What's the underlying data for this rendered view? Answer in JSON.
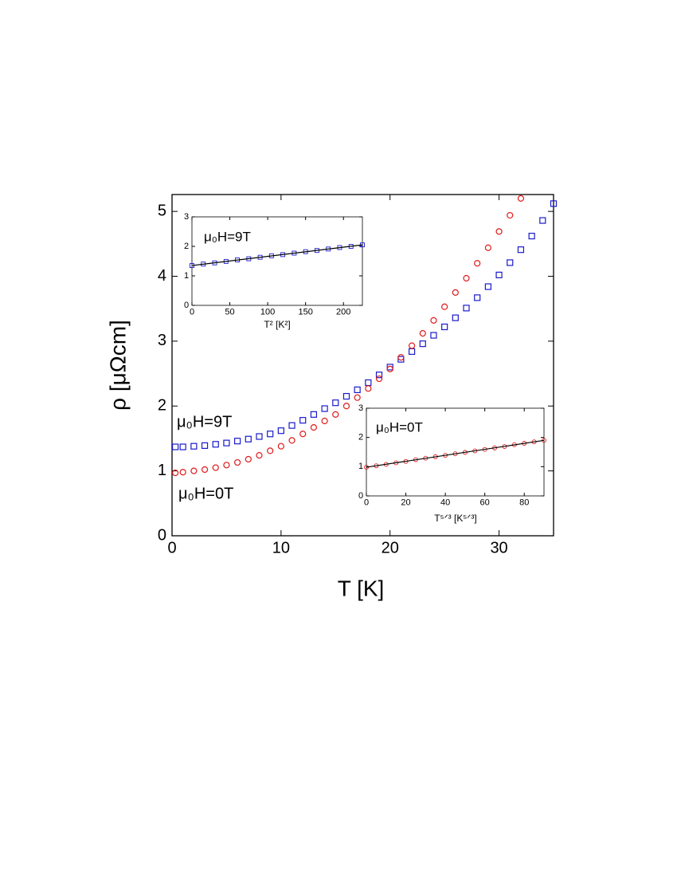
{
  "chart_data": [
    {
      "type": "scatter",
      "xlabel": "T [K]",
      "ylabel": "ρ [μΩcm]",
      "xlim": [
        0,
        35
      ],
      "ylim": [
        0,
        5.26
      ],
      "xticks": [
        0,
        10,
        20,
        30
      ],
      "yticks": [
        0,
        1,
        2,
        3,
        4,
        5
      ],
      "annotations": [
        "μ₀H=9T",
        "μ₀H=0T"
      ],
      "series": [
        {
          "name": "μ₀H=9T",
          "color": "#1a1acc",
          "marker": "square",
          "x": [
            0.3,
            1,
            2,
            3,
            4,
            5,
            6,
            7,
            8,
            9,
            10,
            11,
            12,
            13,
            14,
            15,
            16,
            17,
            18,
            19,
            20,
            21,
            22,
            23,
            24,
            25,
            26,
            27,
            28,
            29,
            30,
            31,
            32,
            33,
            34,
            35
          ],
          "values": [
            1.37,
            1.37,
            1.38,
            1.39,
            1.41,
            1.43,
            1.46,
            1.49,
            1.53,
            1.57,
            1.62,
            1.7,
            1.78,
            1.87,
            1.96,
            2.05,
            2.15,
            2.25,
            2.36,
            2.48,
            2.6,
            2.72,
            2.84,
            2.96,
            3.09,
            3.22,
            3.36,
            3.51,
            3.67,
            3.84,
            4.02,
            4.21,
            4.41,
            4.62,
            4.86,
            5.12
          ]
        },
        {
          "name": "μ₀H=0T",
          "color": "#e01a1a",
          "marker": "circle",
          "x": [
            0.3,
            1,
            2,
            3,
            4,
            5,
            6,
            7,
            8,
            9,
            10,
            11,
            12,
            13,
            14,
            15,
            16,
            17,
            18,
            19,
            20,
            21,
            22,
            23,
            24,
            25,
            26,
            27,
            28,
            29,
            30,
            31,
            32
          ],
          "values": [
            0.97,
            0.98,
            1.0,
            1.02,
            1.05,
            1.09,
            1.13,
            1.18,
            1.24,
            1.31,
            1.38,
            1.47,
            1.57,
            1.67,
            1.77,
            1.87,
            2.0,
            2.13,
            2.27,
            2.42,
            2.57,
            2.75,
            2.93,
            3.12,
            3.32,
            3.53,
            3.75,
            3.97,
            4.2,
            4.44,
            4.69,
            4.94,
            5.2
          ]
        }
      ]
    },
    {
      "type": "scatter",
      "xlabel": "T² [K²]",
      "xlim": [
        0,
        225
      ],
      "ylim": [
        0,
        3
      ],
      "xticks": [
        0,
        50,
        100,
        150,
        200
      ],
      "yticks": [
        0,
        1,
        2,
        3
      ],
      "annotations": [
        "μ₀H=9T"
      ],
      "fit": {
        "x": [
          0,
          225
        ],
        "values": [
          1.35,
          2.05
        ],
        "color": "#000000"
      },
      "series": [
        {
          "name": "μ₀H=9T",
          "color": "#1a1acc",
          "marker": "square",
          "x": [
            0,
            15,
            30,
            45,
            60,
            75,
            90,
            105,
            120,
            135,
            150,
            165,
            180,
            195,
            210,
            225
          ],
          "values": [
            1.35,
            1.4,
            1.44,
            1.49,
            1.54,
            1.58,
            1.63,
            1.68,
            1.72,
            1.77,
            1.82,
            1.86,
            1.91,
            1.96,
            2.0,
            2.05
          ]
        }
      ]
    },
    {
      "type": "scatter",
      "xlabel": "T⁵ᐟ³ [K⁵ᐟ³]",
      "xlim": [
        0,
        90
      ],
      "ylim": [
        0,
        3
      ],
      "xticks": [
        0,
        20,
        40,
        60,
        80
      ],
      "yticks": [
        0,
        1,
        2,
        3
      ],
      "annotations": [
        "μ₀H=0T"
      ],
      "fit": {
        "x": [
          0,
          90
        ],
        "values": [
          0.98,
          1.9
        ],
        "color": "#000000"
      },
      "series": [
        {
          "name": "μ₀H=0T",
          "color": "#e01a1a",
          "marker": "circle",
          "x": [
            0,
            5,
            10,
            15,
            20,
            25,
            30,
            35,
            40,
            45,
            50,
            55,
            60,
            65,
            70,
            75,
            80,
            85,
            90
          ],
          "values": [
            0.98,
            1.03,
            1.08,
            1.13,
            1.18,
            1.24,
            1.29,
            1.34,
            1.39,
            1.44,
            1.49,
            1.54,
            1.59,
            1.64,
            1.69,
            1.75,
            1.8,
            1.85,
            1.9
          ]
        }
      ]
    }
  ]
}
